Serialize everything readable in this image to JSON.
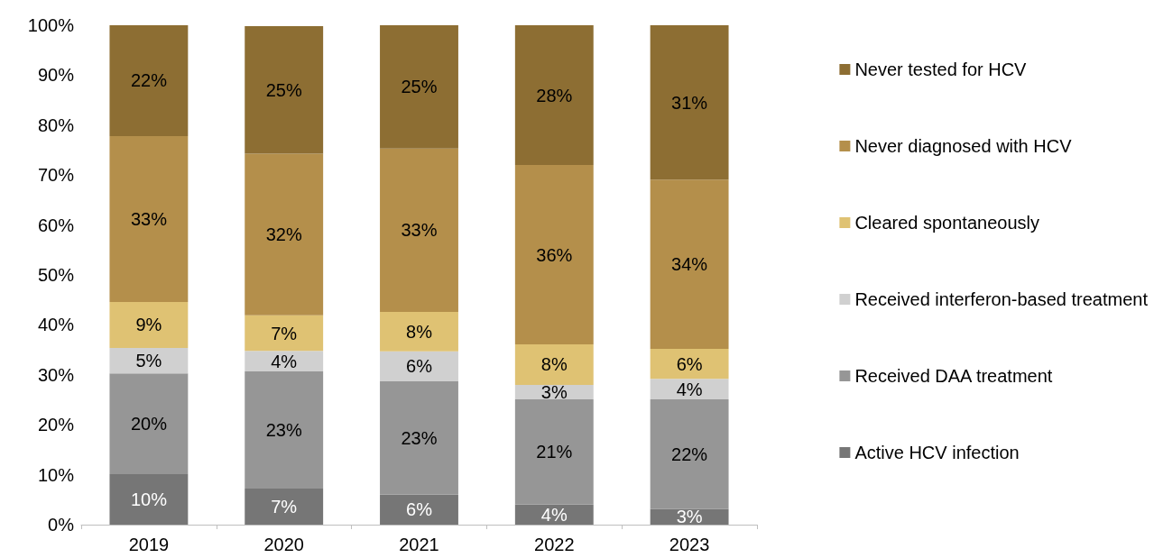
{
  "chart_data": {
    "type": "bar",
    "stacked": true,
    "categories": [
      "2019",
      "2020",
      "2021",
      "2022",
      "2023"
    ],
    "series": [
      {
        "name": "Active HCV infection",
        "color": "#767676",
        "values": [
          10.1,
          7.2,
          6.0,
          4.0,
          3.1
        ],
        "value_labels": [
          "10%",
          "7%",
          "6%",
          "4%",
          "3%"
        ]
      },
      {
        "name": "Received DAA treatment",
        "color": "#969696",
        "values": [
          20.2,
          23.5,
          22.7,
          21.1,
          22.0
        ],
        "value_labels": [
          "20%",
          "23%",
          "23%",
          "21%",
          "22%"
        ]
      },
      {
        "name": "Received interferon-based treatment",
        "color": "#d0d0d0",
        "values": [
          5.1,
          4.1,
          6.0,
          2.9,
          4.1
        ],
        "value_labels": [
          "5%",
          "4%",
          "6%",
          "3%",
          "4%"
        ]
      },
      {
        "name": "Cleared spontaneously",
        "color": "#dfc273",
        "values": [
          9.2,
          7.1,
          7.9,
          8.1,
          6.0
        ],
        "value_labels": [
          "9%",
          "7%",
          "8%",
          "8%",
          "6%"
        ]
      },
      {
        "name": "Never diagnosed with HCV",
        "color": "#b48f4b",
        "values": [
          33.2,
          32.4,
          32.7,
          35.9,
          33.9
        ],
        "value_labels": [
          "33%",
          "32%",
          "33%",
          "36%",
          "34%"
        ]
      },
      {
        "name": "Never tested for HCV",
        "color": "#8d6e33",
        "values": [
          22.2,
          25.5,
          24.7,
          28.0,
          30.9
        ],
        "value_labels": [
          "22%",
          "25%",
          "25%",
          "28%",
          "31%"
        ]
      }
    ],
    "ylim": [
      0,
      100
    ],
    "yticks": [
      {
        "value": 0,
        "label": "0%"
      },
      {
        "value": 10,
        "label": "10%"
      },
      {
        "value": 20,
        "label": "20%"
      },
      {
        "value": 30,
        "label": "30%"
      },
      {
        "value": 40,
        "label": "40%"
      },
      {
        "value": 50,
        "label": "50%"
      },
      {
        "value": 60,
        "label": "60%"
      },
      {
        "value": 70,
        "label": "70%"
      },
      {
        "value": 80,
        "label": "80%"
      },
      {
        "value": 90,
        "label": "90%"
      },
      {
        "value": 100,
        "label": "100%"
      }
    ],
    "grid": false,
    "legend": "right"
  }
}
